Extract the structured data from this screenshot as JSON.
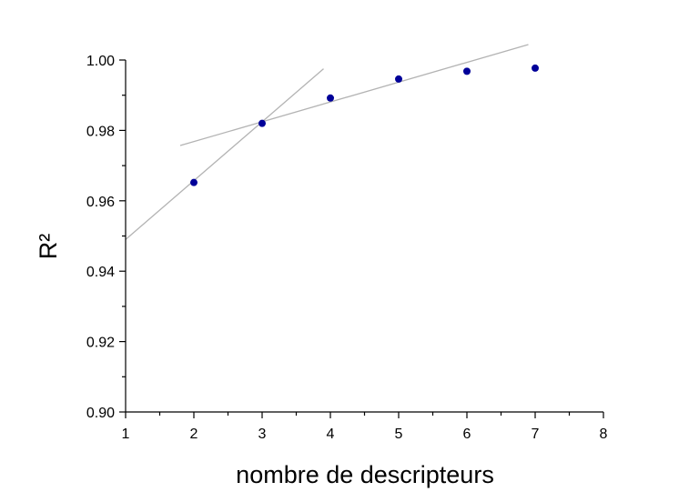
{
  "chart_data": {
    "type": "scatter",
    "title": "",
    "xlabel": "nombre de descripteurs",
    "ylabel": "R²",
    "xlim": [
      1,
      8
    ],
    "ylim": [
      0.9,
      1.0
    ],
    "x_ticks": [
      1,
      2,
      3,
      4,
      5,
      6,
      7,
      8
    ],
    "x_tick_labels": [
      "1",
      "2",
      "3",
      "4",
      "5",
      "6",
      "7",
      "8"
    ],
    "y_ticks": [
      0.9,
      0.92,
      0.94,
      0.96,
      0.98,
      1.0
    ],
    "y_tick_labels": [
      "0.90",
      "0.92",
      "0.94",
      "0.96",
      "0.98",
      "1.00"
    ],
    "grid": false,
    "legend": "none",
    "series": [
      {
        "x": [
          2,
          3,
          4,
          5,
          6,
          7
        ],
        "y": [
          0.9652,
          0.982,
          0.9892,
          0.9946,
          0.9968,
          0.9977
        ],
        "color": "#000099"
      }
    ],
    "trend_lines": [
      {
        "x": [
          1.0,
          3.9
        ],
        "y": [
          0.949,
          0.9975
        ],
        "color": "#b3b3b3"
      },
      {
        "x": [
          1.8,
          6.9
        ],
        "y": [
          0.9757,
          1.0044
        ],
        "color": "#b3b3b3"
      }
    ]
  }
}
